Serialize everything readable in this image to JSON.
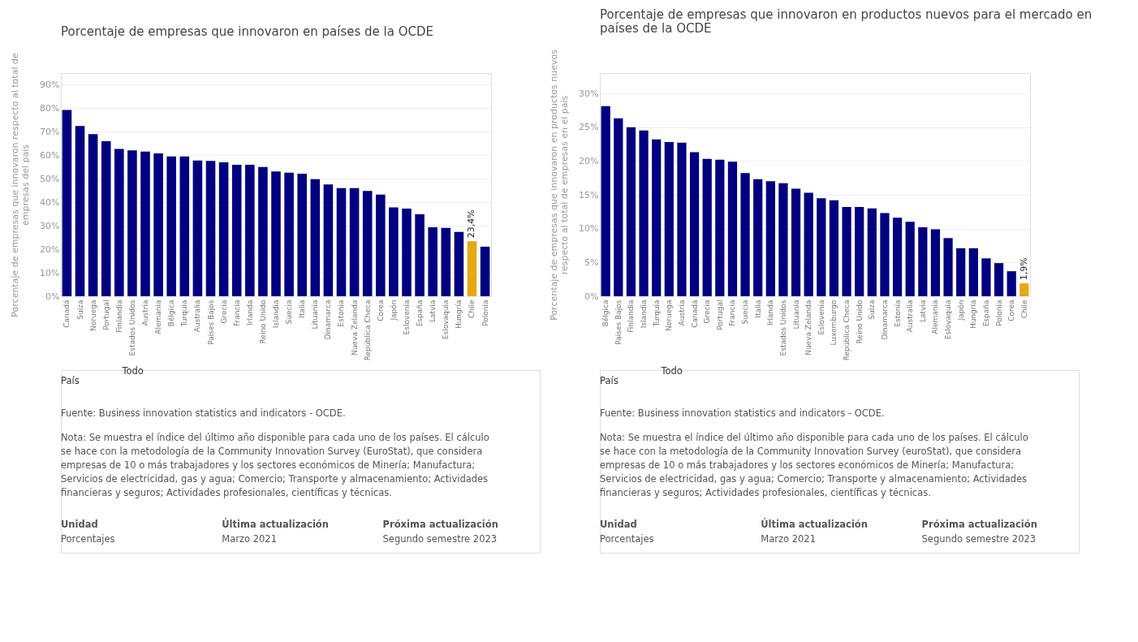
{
  "chart_data": [
    {
      "type": "bar",
      "title": "Porcentaje de empresas que innovaron en países de la OCDE",
      "ylabel": "Porcentaje de empresas que innovaron respecto al total de empresas del país",
      "categories": [
        "Canadá",
        "Suiza",
        "Noruega",
        "Portugal",
        "Finlandia",
        "Estados Unidos",
        "Austria",
        "Alemania",
        "Bélgica",
        "Turquía",
        "Australia",
        "Países Bajos",
        "Grecia",
        "Francia",
        "Irlanda",
        "Reino Unido",
        "Islandia",
        "Suecia",
        "Italia",
        "Lituania",
        "Dinamarca",
        "Estonia",
        "Nueva Zelanda",
        "República Checa",
        "Corea",
        "Japón",
        "Eslovenia",
        "España",
        "Latvia",
        "Eslovaquia",
        "Hungría",
        "Chile",
        "Polonia"
      ],
      "values": [
        79.3,
        72.5,
        69.0,
        66.0,
        62.7,
        62.1,
        61.6,
        60.8,
        59.5,
        59.5,
        57.8,
        57.6,
        57.0,
        56.0,
        56.0,
        55.0,
        53.1,
        52.6,
        52.2,
        49.8,
        47.6,
        46.0,
        46.0,
        44.8,
        43.3,
        37.8,
        37.3,
        34.9,
        29.4,
        29.1,
        27.4,
        23.4,
        21.1
      ],
      "colors": [
        "#000080",
        "#000080",
        "#000080",
        "#000080",
        "#000080",
        "#000080",
        "#000080",
        "#000080",
        "#000080",
        "#000080",
        "#000080",
        "#000080",
        "#000080",
        "#000080",
        "#000080",
        "#000080",
        "#000080",
        "#000080",
        "#000080",
        "#000080",
        "#000080",
        "#000080",
        "#000080",
        "#000080",
        "#000080",
        "#000080",
        "#000080",
        "#000080",
        "#000080",
        "#000080",
        "#000080",
        "#e6a817",
        "#000080"
      ],
      "value_labels": [
        null,
        null,
        null,
        null,
        null,
        null,
        null,
        null,
        null,
        null,
        null,
        null,
        null,
        null,
        null,
        null,
        null,
        null,
        null,
        null,
        null,
        null,
        null,
        null,
        null,
        null,
        null,
        null,
        null,
        null,
        null,
        "23,4%",
        null
      ],
      "ylim": [
        0,
        95
      ],
      "yticks": [
        {
          "value": 0,
          "label": "0%"
        },
        {
          "value": 10,
          "label": "10%"
        },
        {
          "value": 20,
          "label": "20%"
        },
        {
          "value": 30,
          "label": "30%"
        },
        {
          "value": 40,
          "label": "40%"
        },
        {
          "value": 50,
          "label": "50%"
        },
        {
          "value": 60,
          "label": "60%"
        },
        {
          "value": 70,
          "label": "70%"
        },
        {
          "value": 80,
          "label": "80%"
        },
        {
          "value": 90,
          "label": "90%"
        }
      ],
      "grid": "y",
      "annotations": [
        "País",
        "Todo",
        "Fuente: Business innovation statistics and indicators - OCDE.",
        "Nota: Se muestra el índice del último año disponible para cada uno de los países. El cálculo se hace con la metodología de la Community Innovation Survey (EuroStat), que considera empresas de 10 o más trabajadores y los sectores económicos de Minería; Manufactura; Servicios de electricidad, gas y agua; Comercio; Transporte y almacenamiento; Actividades financieras y seguros; Actividades profesionales, científicas y técnicas.",
        "Unidad",
        "Porcentajes",
        "Última actualización",
        "Marzo 2021",
        "Próxima actualización",
        "Segundo semestre 2023"
      ]
    },
    {
      "type": "bar",
      "title": "Porcentaje de empresas que innovaron en productos nuevos para el mercado en países de la OCDE",
      "ylabel": "Porcentaje de empresas que innovaron en productos nuevos respecto al total de empresas en el país",
      "categories": [
        "Bélgica",
        "Países Bajos",
        "Finlandia",
        "Islandia",
        "Turquía",
        "Noruega",
        "Austria",
        "Canadá",
        "Grecia",
        "Portugal",
        "Francia",
        "Suecia",
        "Italia",
        "Irlanda",
        "Estados Unidos",
        "Lituania",
        "Nueva Zelanda",
        "Eslovenia",
        "Luxemburgo",
        "República Checa",
        "Reino Unido",
        "Suiza",
        "Dinamarca",
        "Estonia",
        "Australia",
        "Latvia",
        "Alemania",
        "Eslovaquia",
        "Japón",
        "Hungría",
        "España",
        "Polonia",
        "Corea",
        "Chile"
      ],
      "values": [
        28.1,
        26.3,
        25.0,
        24.5,
        23.2,
        22.8,
        22.7,
        21.3,
        20.3,
        20.2,
        19.9,
        18.2,
        17.3,
        17.0,
        16.7,
        15.9,
        15.3,
        14.5,
        14.2,
        13.2,
        13.2,
        13.0,
        12.3,
        11.6,
        11.0,
        10.2,
        9.9,
        8.6,
        7.1,
        7.1,
        5.6,
        4.9,
        3.7,
        1.9
      ],
      "colors": [
        "#000080",
        "#000080",
        "#000080",
        "#000080",
        "#000080",
        "#000080",
        "#000080",
        "#000080",
        "#000080",
        "#000080",
        "#000080",
        "#000080",
        "#000080",
        "#000080",
        "#000080",
        "#000080",
        "#000080",
        "#000080",
        "#000080",
        "#000080",
        "#000080",
        "#000080",
        "#000080",
        "#000080",
        "#000080",
        "#000080",
        "#000080",
        "#000080",
        "#000080",
        "#000080",
        "#000080",
        "#000080",
        "#000080",
        "#e6a817"
      ],
      "value_labels": [
        null,
        null,
        null,
        null,
        null,
        null,
        null,
        null,
        null,
        null,
        null,
        null,
        null,
        null,
        null,
        null,
        null,
        null,
        null,
        null,
        null,
        null,
        null,
        null,
        null,
        null,
        null,
        null,
        null,
        null,
        null,
        null,
        null,
        "1,9%"
      ],
      "ylim": [
        0,
        33
      ],
      "yticks": [
        {
          "value": 0,
          "label": "0%"
        },
        {
          "value": 5,
          "label": "5%"
        },
        {
          "value": 10,
          "label": "10%"
        },
        {
          "value": 15,
          "label": "15%"
        },
        {
          "value": 20,
          "label": "20%"
        },
        {
          "value": 25,
          "label": "25%"
        },
        {
          "value": 30,
          "label": "30%"
        }
      ],
      "grid": "y",
      "annotations": [
        "País",
        "Todo",
        "Fuente: Business innovation statistics and indicators - OCDE.",
        "Nota: Se muestra el índice del último año disponible para cada uno de los países. El cálculo se hace con la metodología de la Community Innovation Survey (euroStat), que considera empresas de 10 o más trabajadores y los sectores económicos de Minería; Manufactura; Servicios de electricidad, gas y agua; Comercio; Transporte y almacenamiento; Actividades financieras y seguros; Actividades profesionales, científicas y técnicas.",
        "Unidad",
        "Porcentajes",
        "Última actualización",
        "Marzo 2021",
        "Próxima actualización",
        "Segundo semestre 2023"
      ]
    }
  ]
}
